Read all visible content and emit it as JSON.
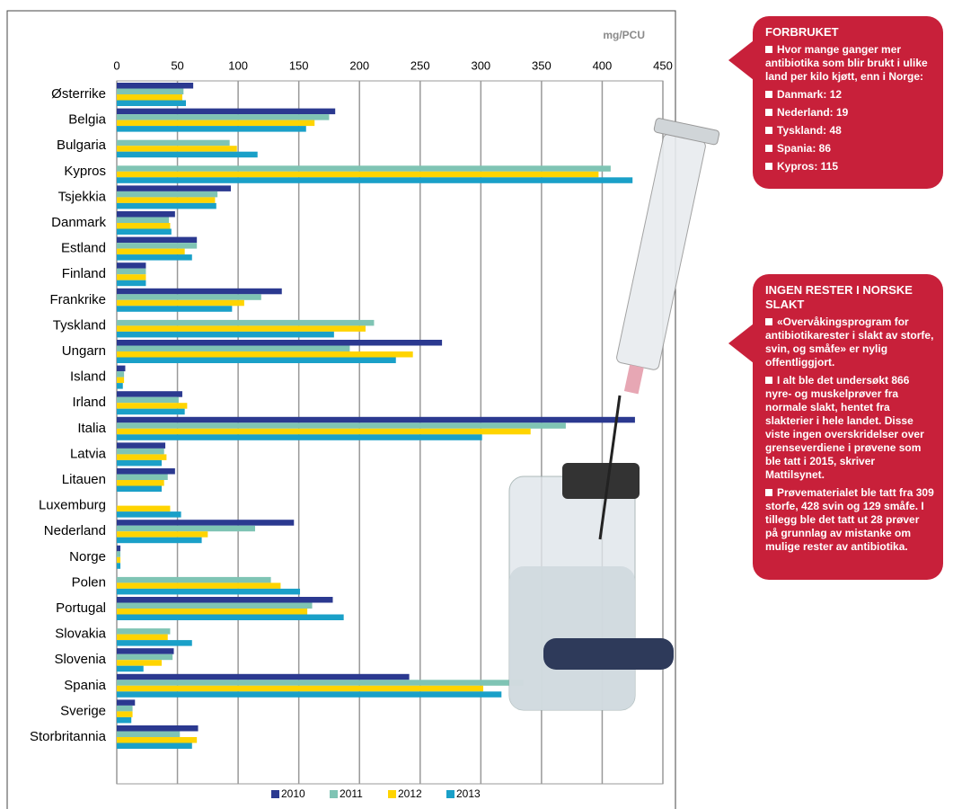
{
  "chart_data": {
    "type": "hbar",
    "unit_label": "mg/PCU",
    "categories": [
      "Østerrike",
      "Belgia",
      "Bulgaria",
      "Kypros",
      "Tsjekkia",
      "Danmark",
      "Estland",
      "Finland",
      "Frankrike",
      "Tyskland",
      "Ungarn",
      "Island",
      "Irland",
      "Italia",
      "Latvia",
      "Litauen",
      "Luxemburg",
      "Nederland",
      "Norge",
      "Polen",
      "Portugal",
      "Slovakia",
      "Slovenia",
      "Spania",
      "Sverige",
      "Storbritannia"
    ],
    "series": [
      {
        "name": "2010",
        "color": "#2b3990",
        "values": [
          63,
          180,
          null,
          null,
          94,
          48,
          66,
          24,
          136,
          null,
          268,
          7,
          54,
          427,
          40,
          48,
          null,
          146,
          3,
          null,
          178,
          null,
          47,
          241,
          15,
          67
        ]
      },
      {
        "name": "2011",
        "color": "#7fc4b4",
        "values": [
          55,
          175,
          93,
          407,
          83,
          43,
          66,
          24,
          119,
          212,
          192,
          6,
          51,
          370,
          39,
          42,
          null,
          114,
          3,
          127,
          161,
          44,
          46,
          335,
          13,
          52
        ]
      },
      {
        "name": "2012",
        "color": "#ffd400",
        "values": [
          54,
          163,
          99,
          397,
          81,
          44,
          56,
          24,
          105,
          205,
          244,
          6,
          58,
          341,
          41,
          39,
          44,
          75,
          3,
          135,
          157,
          42,
          37,
          302,
          13,
          66
        ]
      },
      {
        "name": "2013",
        "color": "#1aa0c8",
        "values": [
          57,
          156,
          116,
          425,
          82,
          45,
          62,
          24,
          95,
          179,
          230,
          5,
          56,
          301,
          37,
          37,
          53,
          70,
          3,
          151,
          187,
          62,
          22,
          317,
          12,
          62
        ]
      }
    ],
    "xlim": [
      0,
      450
    ],
    "xticks": [
      0,
      50,
      100,
      150,
      200,
      250,
      300,
      350,
      400,
      450
    ],
    "grid": true
  },
  "info_boxes": [
    {
      "title": "FORBRUKET",
      "items": [
        "Hvor mange ganger mer antibiotika som blir brukt i ulike land per kilo kjøtt, enn i Norge:",
        "Danmark: 12",
        "Nederland: 19",
        "Tyskland: 48",
        "Spania: 86",
        "Kypros: 115"
      ]
    },
    {
      "title": "INGEN RESTER I NORSKE SLAKT",
      "items": [
        "«Overvåkingsprogram for antibiotikarester i slakt av storfe, svin, og småfe» er nylig offentliggjort.",
        "I alt ble det undersøkt 866 nyre- og muskelprøver fra normale slakt, hentet fra slakterier i hele landet. Disse viste ingen overskridelser over grenseverdiene i prøvene som ble tatt i 2015, skriver Mattilsynet.",
        "Prøvematerialet ble tatt fra 309 storfe, 428 svin og 129 småfe. I tillegg ble det tatt ut 28 prøver på grunnlag av mistanke om mulige rester av antibiotika."
      ]
    }
  ]
}
